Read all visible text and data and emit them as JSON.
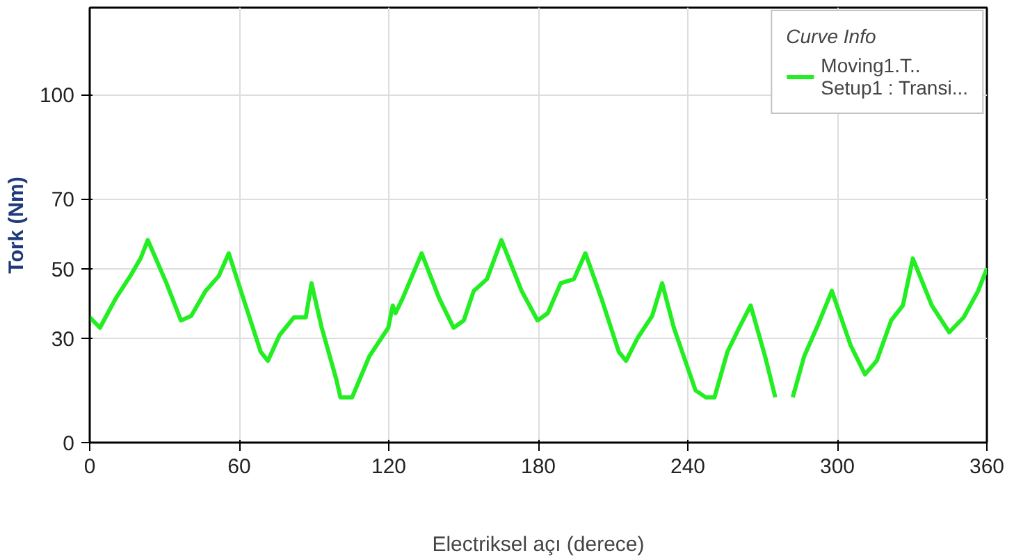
{
  "chart_data": {
    "type": "line",
    "xlabel": "Electriksel açı (derece)",
    "ylabel": "Tork (Nm)",
    "legend_title": "Curve Info",
    "legend": "top right",
    "grid": true,
    "xlim": [
      0,
      360
    ],
    "xticks": [
      0,
      60,
      120,
      180,
      240,
      300,
      360
    ],
    "ylim": [
      0,
      125
    ],
    "yticks": [
      0,
      30,
      50,
      70,
      100
    ],
    "x": [
      0,
      4.1,
      10.5,
      16.3,
      20.4,
      23.3,
      30.8,
      36.6,
      40.7,
      46.5,
      51.8,
      55.8,
      61.6,
      68.6,
      71.5,
      76.2,
      82.0,
      86.7,
      89.0,
      93.1,
      98.9,
      100.6,
      105.3,
      112.2,
      119.8,
      121.6,
      122.7,
      125.6,
      133.2,
      140.2,
      146.0,
      150.1,
      154.1,
      159.4,
      165.2,
      173.3,
      179.7,
      183.8,
      189.0,
      194.3,
      198.9,
      205.3,
      212.3,
      215.2,
      219.8,
      225.7,
      229.7,
      234.4,
      243.1,
      247.2,
      250.7,
      255.9,
      260.6,
      265.2,
      271.0,
      275.1,
      278.5,
      282.1,
      286.7,
      292.5,
      297.8,
      305.3,
      311.1,
      315.8,
      321.6,
      326.3,
      330.3,
      337.9,
      344.9,
      350.7,
      356.5,
      360
    ],
    "series": [
      {
        "name": "Moving1.T..\nSetup1 : Transi...",
        "color": "#22ee22",
        "values": [
          36.0,
          33.0,
          41.5,
          47.9,
          52.9,
          58.2,
          45.8,
          35.1,
          36.4,
          43.6,
          47.9,
          54.4,
          41.5,
          26.1,
          23.5,
          30.9,
          36.0,
          36.0,
          45.8,
          33.0,
          18.3,
          13.0,
          13.0,
          24.8,
          33.0,
          39.4,
          37.2,
          41.5,
          54.4,
          41.5,
          33.0,
          35.1,
          43.6,
          47.0,
          58.2,
          43.6,
          35.1,
          37.2,
          45.8,
          47.0,
          54.4,
          41.5,
          26.1,
          23.5,
          30.0,
          36.4,
          45.8,
          33.0,
          15.0,
          13.0,
          13.0,
          26.1,
          33.0,
          39.4,
          24.8,
          13.0,
          null,
          13.0,
          24.8,
          34.3,
          43.6,
          28.0,
          19.6,
          23.5,
          35.1,
          39.4,
          52.9,
          39.4,
          31.7,
          36.0,
          43.6,
          50.0
        ]
      }
    ]
  }
}
